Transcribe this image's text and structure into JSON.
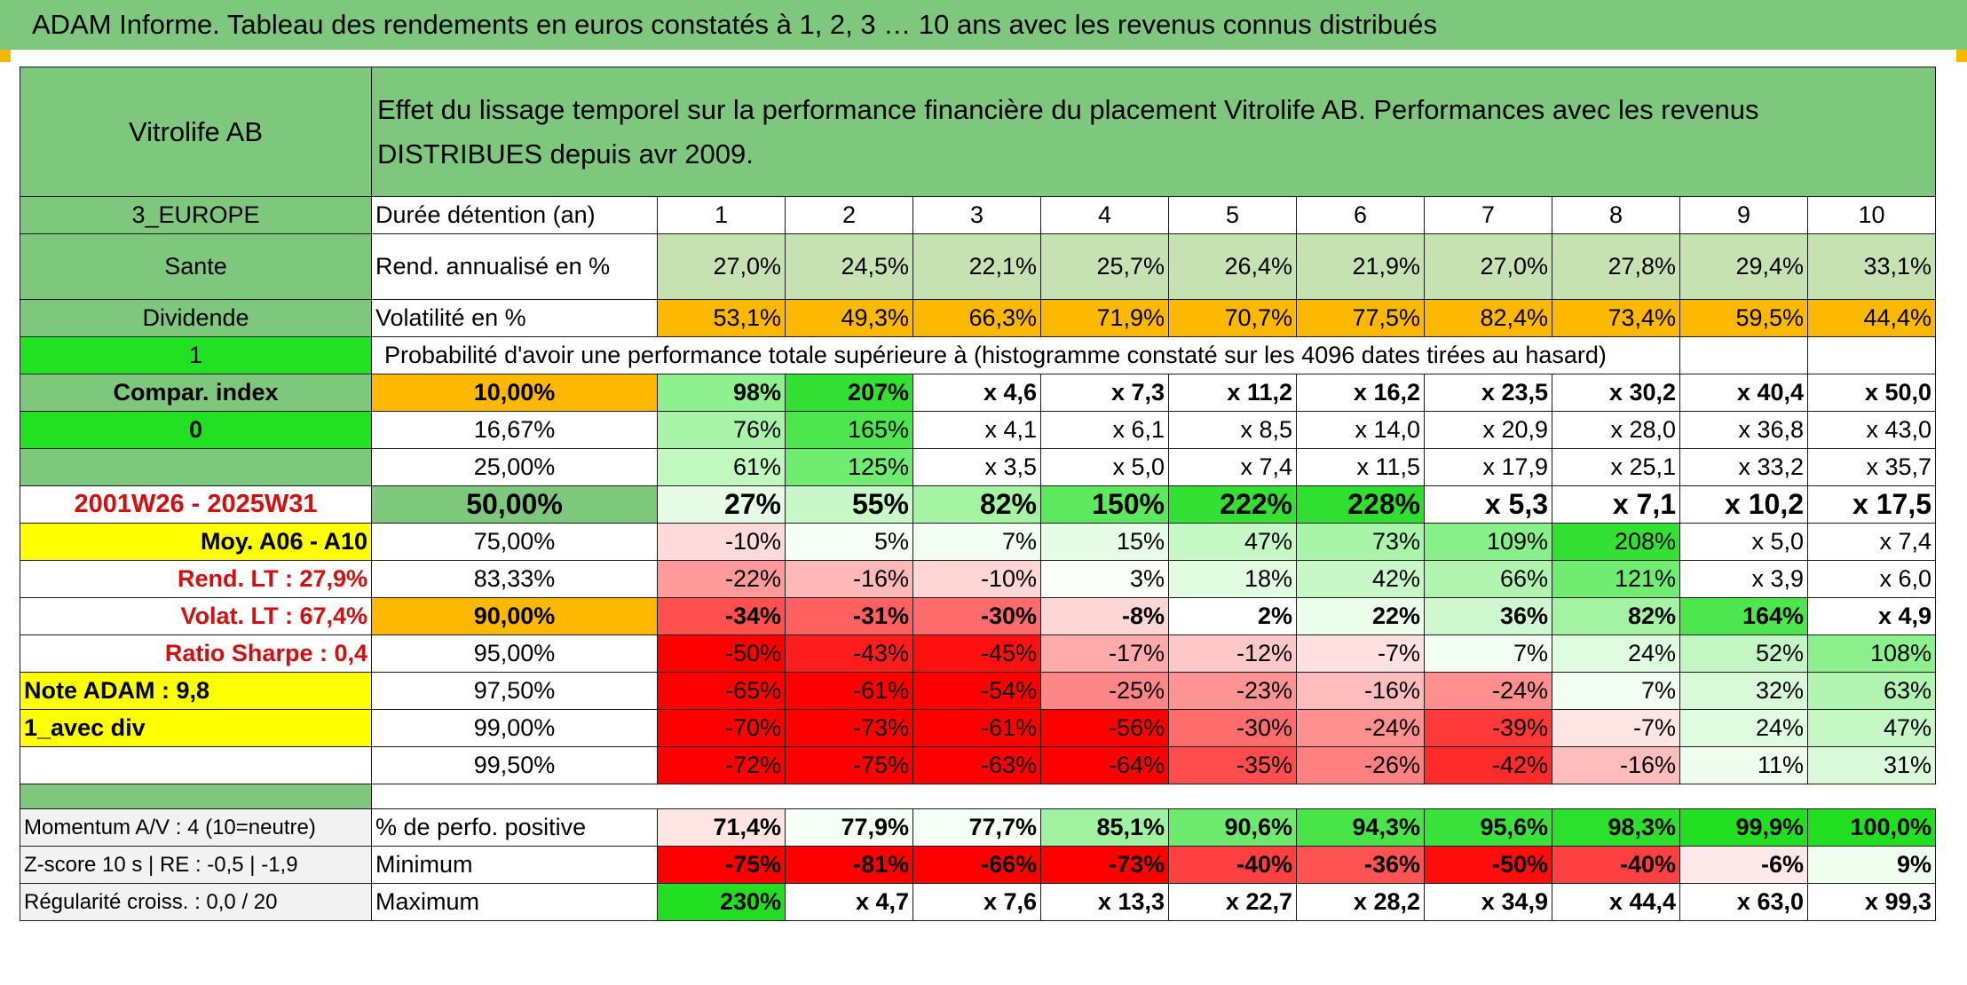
{
  "page": {
    "title": "ADAM Informe. Tableau des rendements en euros constatés à 1, 2, 3 … 10 ans avec les revenus connus distribués",
    "colors": {
      "header_green": "#7ec87e",
      "light_green": "#c6e2b3",
      "bright_green": "#22e022",
      "yellow": "#ffff00",
      "orange": "#ffb800",
      "label_red": "#d21010"
    }
  },
  "table": {
    "fund_name": "Vitrolife AB",
    "description": "Effet du lissage temporel sur la performance financière du placement Vitrolife AB. Performances avec les revenus DISTRIBUES depuis avr 2009.",
    "duration_label": "Durée détention (an)",
    "durations": [
      "1",
      "2",
      "3",
      "4",
      "5",
      "6",
      "7",
      "8",
      "9",
      "10"
    ],
    "rend_label": "Rend. annualisé en %",
    "rend_values": [
      "27,0%",
      "24,5%",
      "22,1%",
      "25,7%",
      "26,4%",
      "21,9%",
      "27,0%",
      "27,8%",
      "29,4%",
      "33,1%"
    ],
    "vol_label": "Volatilité en %",
    "vol_values": [
      "53,1%",
      "49,3%",
      "66,3%",
      "71,9%",
      "70,7%",
      "77,5%",
      "82,4%",
      "73,4%",
      "59,5%",
      "44,4%"
    ],
    "prob_title": "Probabilité d'avoir une performance totale supérieure à (histogramme constaté sur les 4096 dates tirées au hasard)",
    "left_labels": {
      "region": "3_EUROPE",
      "sector": "Sante",
      "dividend": "Dividende",
      "flag_one": "1",
      "compar_index": "Compar. index",
      "flag_zero": "0",
      "empty": "",
      "period": "2001W26 - 2025W31",
      "moy": "Moy. A06 - A10",
      "rend_lt": "Rend. LT :    27,9%",
      "volat_lt": "Volat. LT :    67,4%",
      "sharpe": "Ratio Sharpe :    0,4",
      "note": "Note ADAM : 9,8",
      "avec_div": "1_avec div",
      "blank": ""
    },
    "prob_rows": [
      {
        "pct": "10,00%",
        "bold": true,
        "values": [
          "98%",
          "207%",
          "x 4,6",
          "x 7,3",
          "x 11,2",
          "x 16,2",
          "x 23,5",
          "x 30,2",
          "x 40,4",
          "x 50,0"
        ],
        "colors": [
          "#8ef08e",
          "#33e033",
          "#fff",
          "#fff",
          "#fff",
          "#fff",
          "#fff",
          "#fff",
          "#fff",
          "#fff"
        ]
      },
      {
        "pct": "16,67%",
        "bold": false,
        "values": [
          "76%",
          "165%",
          "x 4,1",
          "x 6,1",
          "x 8,5",
          "x 14,0",
          "x 20,9",
          "x 28,0",
          "x 36,8",
          "x 43,0"
        ],
        "colors": [
          "#aaf4aa",
          "#4ee64e",
          "#fff",
          "#fff",
          "#fff",
          "#fff",
          "#fff",
          "#fff",
          "#fff",
          "#fff"
        ]
      },
      {
        "pct": "25,00%",
        "bold": false,
        "values": [
          "61%",
          "125%",
          "x 3,5",
          "x 5,0",
          "x 7,4",
          "x 11,5",
          "x 17,9",
          "x 25,1",
          "x 33,2",
          "x 35,7"
        ],
        "colors": [
          "#c0f8c0",
          "#70ec70",
          "#fff",
          "#fff",
          "#fff",
          "#fff",
          "#fff",
          "#fff",
          "#fff",
          "#fff"
        ]
      },
      {
        "pct": "50,00%",
        "bold": true,
        "big": true,
        "values": [
          "27%",
          "55%",
          "82%",
          "150%",
          "222%",
          "228%",
          "x 5,3",
          "x 7,1",
          "x 10,2",
          "x 17,5"
        ],
        "colors": [
          "#e6fce6",
          "#c8f8c8",
          "#a4f4a4",
          "#5ee85e",
          "#33e033",
          "#30df30",
          "#fff",
          "#fff",
          "#fff",
          "#fff"
        ]
      },
      {
        "pct": "75,00%",
        "bold": false,
        "values": [
          "-10%",
          "5%",
          "7%",
          "15%",
          "47%",
          "73%",
          "109%",
          "208%",
          "x 5,0",
          "x 7,4"
        ],
        "colors": [
          "#ffdada",
          "#f6fff6",
          "#f2fef2",
          "#e6fce6",
          "#c6f8c6",
          "#a8f4a8",
          "#88f088",
          "#33e033",
          "#fff",
          "#fff"
        ]
      },
      {
        "pct": "83,33%",
        "bold": false,
        "values": [
          "-22%",
          "-16%",
          "-10%",
          "3%",
          "18%",
          "42%",
          "66%",
          "121%",
          "x 3,9",
          "x 6,0"
        ],
        "colors": [
          "#ff9a9a",
          "#ffb8b8",
          "#ffd6d6",
          "#fafffa",
          "#e2fce2",
          "#c8f8c8",
          "#b0f4b0",
          "#70ec70",
          "#fff",
          "#fff"
        ]
      },
      {
        "pct": "90,00%",
        "bold": true,
        "values": [
          "-34%",
          "-31%",
          "-30%",
          "-8%",
          "2%",
          "22%",
          "36%",
          "82%",
          "164%",
          "x 4,9"
        ],
        "colors": [
          "#ff5050",
          "#ff6060",
          "#ff6a6a",
          "#ffd6d6",
          "#ffffff",
          "#ecfdec",
          "#d0f8d0",
          "#a4f4a4",
          "#4ee64e",
          "#fff"
        ]
      },
      {
        "pct": "95,00%",
        "bold": false,
        "values": [
          "-50%",
          "-43%",
          "-45%",
          "-17%",
          "-12%",
          "-7%",
          "7%",
          "24%",
          "52%",
          "108%"
        ],
        "colors": [
          "#ff0000",
          "#ff1c1c",
          "#ff1010",
          "#ffaaaa",
          "#ffc8c8",
          "#ffe0e0",
          "#f2fef2",
          "#e0fce0",
          "#c2f6c2",
          "#8cf08c"
        ]
      },
      {
        "pct": "97,50%",
        "bold": false,
        "values": [
          "-65%",
          "-61%",
          "-54%",
          "-25%",
          "-23%",
          "-16%",
          "-24%",
          "7%",
          "32%",
          "63%"
        ],
        "colors": [
          "#ff0000",
          "#ff0000",
          "#ff0000",
          "#ff8686",
          "#ff9292",
          "#ffbcbc",
          "#ff8e8e",
          "#f2fef2",
          "#d8fad8",
          "#b2f4b2"
        ]
      },
      {
        "pct": "99,00%",
        "bold": false,
        "values": [
          "-70%",
          "-73%",
          "-61%",
          "-56%",
          "-30%",
          "-24%",
          "-39%",
          "-7%",
          "24%",
          "47%"
        ],
        "colors": [
          "#ff0000",
          "#ff0000",
          "#ff0000",
          "#ff0000",
          "#ff6c6c",
          "#ff9090",
          "#ff3838",
          "#ffe4e4",
          "#e0fce0",
          "#c6f8c6"
        ]
      },
      {
        "pct": "99,50%",
        "bold": false,
        "values": [
          "-72%",
          "-75%",
          "-63%",
          "-64%",
          "-35%",
          "-26%",
          "-42%",
          "-16%",
          "11%",
          "31%"
        ],
        "colors": [
          "#ff0000",
          "#ff0000",
          "#ff0000",
          "#ff0000",
          "#ff4c4c",
          "#ff8080",
          "#ff2a2a",
          "#ffbcbc",
          "#eefdee",
          "#daf9da"
        ]
      }
    ],
    "bottom": {
      "momentum": "Momentum A/V : 4 (10=neutre)",
      "zscore": "Z-score 10 s | RE : -0,5 | -1,9",
      "regularite": "Régularité croiss. : 0,0 / 20",
      "pos_label": "% de perfo. positive",
      "pos_values": [
        "71,4%",
        "77,9%",
        "77,7%",
        "85,1%",
        "90,6%",
        "94,3%",
        "95,6%",
        "98,3%",
        "99,9%",
        "100,0%"
      ],
      "pos_colors": [
        "#ffe4e4",
        "#f6fff6",
        "#f6fff6",
        "#a0f2a0",
        "#6eea6e",
        "#48e448",
        "#3ce23c",
        "#2ce02c",
        "#22df22",
        "#22df22"
      ],
      "min_label": "Minimum",
      "min_values": [
        "-75%",
        "-81%",
        "-66%",
        "-73%",
        "-40%",
        "-36%",
        "-50%",
        "-40%",
        "-6%",
        "9%"
      ],
      "min_colors": [
        "#ff0000",
        "#ff0000",
        "#ff0000",
        "#ff0000",
        "#ff4040",
        "#ff5252",
        "#ff0c0c",
        "#ff4040",
        "#ffe8e8",
        "#f0fef0"
      ],
      "max_label": "Maximum",
      "max_values": [
        "230%",
        "x 4,7",
        "x 7,6",
        "x 13,3",
        "x 22,7",
        "x 28,2",
        "x 34,9",
        "x 44,4",
        "x 63,0",
        "x 99,3"
      ],
      "max_colors": [
        "#22df22",
        "#fff",
        "#fff",
        "#fff",
        "#fff",
        "#fff",
        "#fff",
        "#fff",
        "#fff",
        "#fff"
      ]
    }
  }
}
